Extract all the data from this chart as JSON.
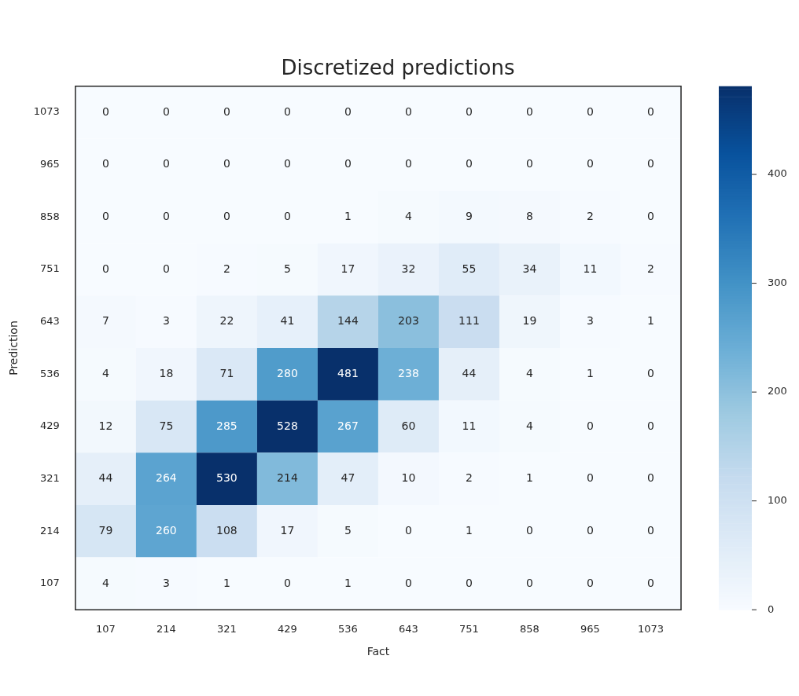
{
  "chart_data": {
    "type": "heatmap",
    "title": "Discretized predictions",
    "xlabel": "Fact",
    "ylabel": "Prediction",
    "categories": [
      "107",
      "214",
      "321",
      "429",
      "536",
      "643",
      "751",
      "858",
      "965",
      "1073"
    ],
    "y_categories": [
      "1073",
      "965",
      "858",
      "751",
      "643",
      "536",
      "429",
      "321",
      "214",
      "107"
    ],
    "cells": [
      [
        0,
        0,
        0,
        0,
        0,
        0,
        0,
        0,
        0,
        0
      ],
      [
        0,
        0,
        0,
        0,
        0,
        0,
        0,
        0,
        0,
        0
      ],
      [
        0,
        0,
        0,
        0,
        1,
        4,
        9,
        8,
        2,
        0
      ],
      [
        0,
        0,
        2,
        5,
        17,
        32,
        55,
        34,
        11,
        2
      ],
      [
        7,
        3,
        22,
        41,
        144,
        203,
        111,
        19,
        3,
        1
      ],
      [
        4,
        18,
        71,
        280,
        481,
        238,
        44,
        4,
        1,
        0
      ],
      [
        12,
        75,
        285,
        528,
        267,
        60,
        11,
        4,
        0,
        0
      ],
      [
        44,
        264,
        530,
        214,
        47,
        10,
        2,
        1,
        0,
        0
      ],
      [
        79,
        260,
        108,
        17,
        5,
        0,
        1,
        0,
        0,
        0
      ],
      [
        4,
        3,
        1,
        0,
        1,
        0,
        0,
        0,
        0,
        0
      ]
    ],
    "clim": [
      0,
      481
    ],
    "cticks": [
      0,
      100,
      200,
      300,
      400
    ],
    "data_labels": true
  }
}
